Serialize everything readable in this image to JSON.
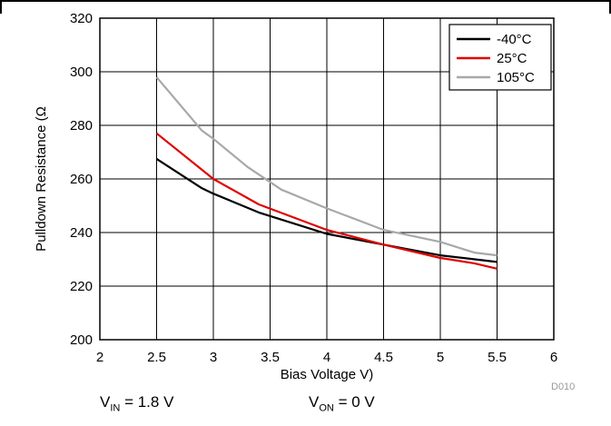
{
  "chart_data": {
    "type": "line",
    "title": "",
    "xlabel": "Bias Voltage V)",
    "ylabel": "Pulldown Resistance (Ω",
    "xlim": [
      2,
      6
    ],
    "ylim": [
      200,
      320
    ],
    "xticks": [
      "2",
      "2.5",
      "3",
      "3.5",
      "4",
      "4.5",
      "5",
      "5.5",
      "6"
    ],
    "yticks": [
      "200",
      "220",
      "240",
      "260",
      "280",
      "300",
      "320"
    ],
    "grid": true,
    "legend_position": "top-right",
    "series": [
      {
        "name": "-40°C",
        "color": "#000000",
        "points": [
          [
            2.5,
            267.5
          ],
          [
            2.9,
            256.5
          ],
          [
            3.0,
            254.5
          ],
          [
            3.4,
            247.5
          ],
          [
            4.0,
            239.5
          ],
          [
            4.5,
            235.5
          ],
          [
            5.0,
            231.5
          ],
          [
            5.5,
            229.0
          ]
        ]
      },
      {
        "name": "25°C",
        "color": "#e00000",
        "points": [
          [
            2.5,
            277.0
          ],
          [
            3.0,
            260.0
          ],
          [
            3.4,
            250.5
          ],
          [
            4.0,
            241.0
          ],
          [
            4.5,
            235.5
          ],
          [
            5.0,
            230.5
          ],
          [
            5.3,
            228.5
          ],
          [
            5.5,
            226.5
          ]
        ]
      },
      {
        "name": "105°C",
        "color": "#a8a8a8",
        "points": [
          [
            2.5,
            298.0
          ],
          [
            2.9,
            278.0
          ],
          [
            3.0,
            275.0
          ],
          [
            3.3,
            264.5
          ],
          [
            3.6,
            256.0
          ],
          [
            4.0,
            249.0
          ],
          [
            4.5,
            241.0
          ],
          [
            5.0,
            236.5
          ],
          [
            5.3,
            232.5
          ],
          [
            5.5,
            231.5
          ]
        ]
      }
    ]
  },
  "figure_id": "D010",
  "captions": {
    "vin": {
      "main": "V",
      "sub": "IN",
      "value": " = 1.8 V"
    },
    "von": {
      "main": "V",
      "sub": "ON",
      "value": " = 0 V"
    }
  }
}
